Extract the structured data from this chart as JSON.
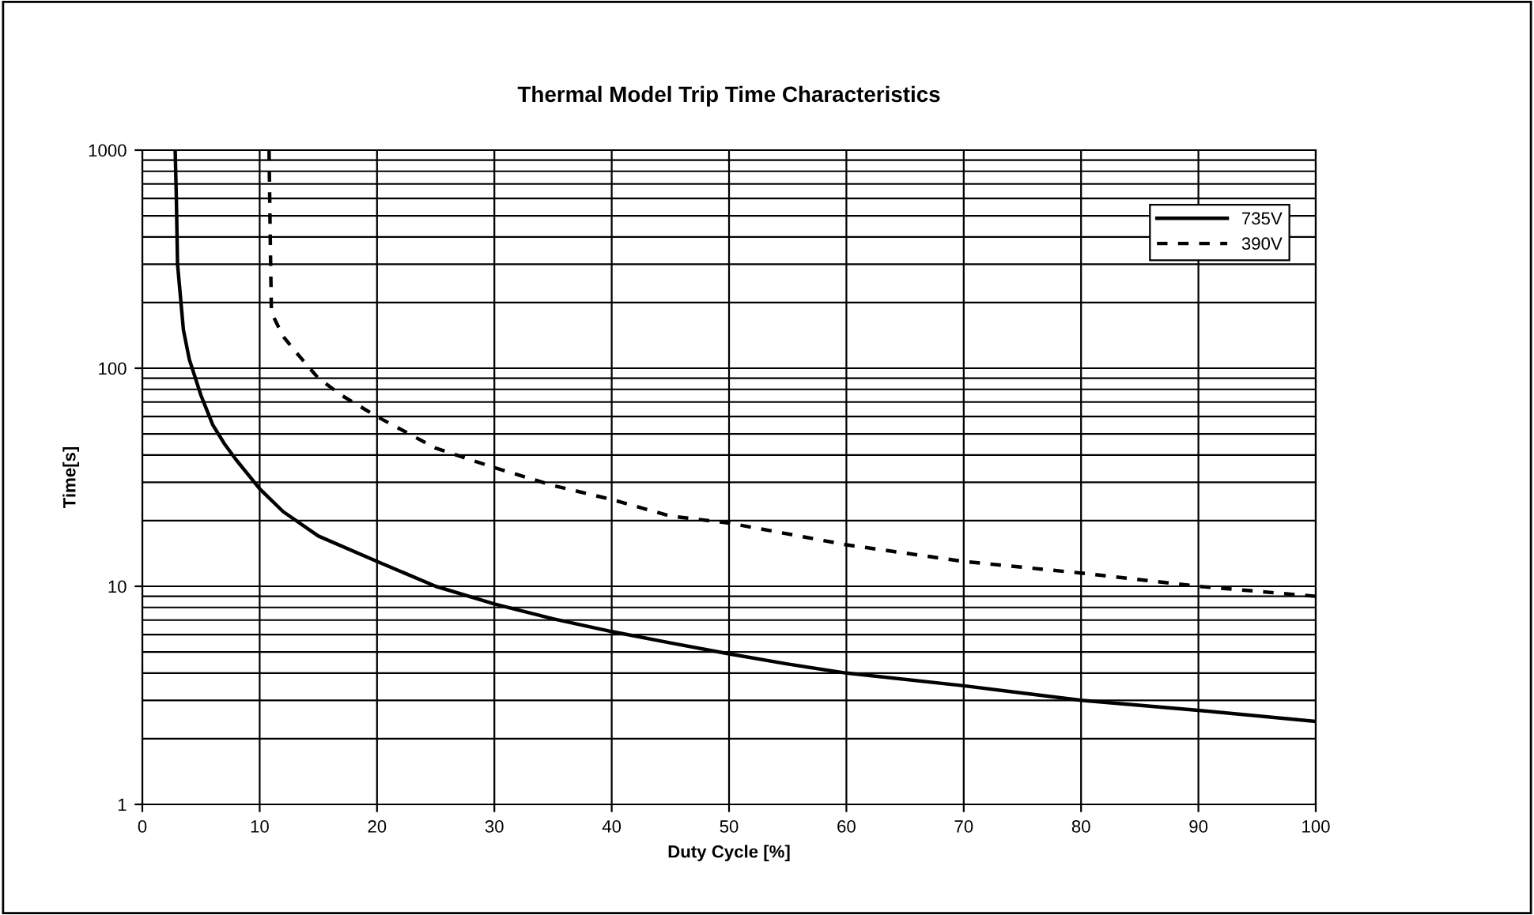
{
  "chart_data": {
    "type": "line",
    "title": "Thermal Model Trip Time Characteristics",
    "xlabel": "Duty Cycle [%]",
    "ylabel": "Time[s]",
    "log": "y",
    "xlim": [
      0,
      100
    ],
    "ylim": [
      1,
      1000
    ],
    "xticks": [
      0,
      10,
      20,
      30,
      40,
      50,
      60,
      70,
      80,
      90,
      100
    ],
    "yticks": [
      1,
      10,
      100,
      1000
    ],
    "grid": true,
    "legend": "top right",
    "marker": "none",
    "series": [
      {
        "name": "735V",
        "color": "#000000",
        "line_style": "solid",
        "x": [
          2.8,
          2.9,
          3,
          3.5,
          4,
          5,
          6,
          7,
          8,
          10,
          12,
          15,
          20,
          25,
          30,
          35,
          40,
          45,
          50,
          55,
          60,
          70,
          80,
          90,
          100
        ],
        "values": [
          1000,
          600,
          300,
          150,
          110,
          75,
          55,
          45,
          38,
          28,
          22,
          17,
          13,
          10,
          8.3,
          7.1,
          6.2,
          5.5,
          4.9,
          4.4,
          4.0,
          3.5,
          3.0,
          2.7,
          2.4
        ]
      },
      {
        "name": "390V",
        "color": "#000000",
        "line_style": "dashed",
        "x": [
          10.8,
          10.9,
          11,
          12,
          13,
          15,
          17,
          20,
          25,
          30,
          35,
          40,
          45,
          50,
          60,
          70,
          80,
          90,
          100
        ],
        "values": [
          1000,
          400,
          180,
          140,
          120,
          90,
          75,
          60,
          43,
          35,
          29,
          25,
          21,
          19.5,
          15.5,
          13,
          11.5,
          10,
          9
        ]
      }
    ]
  }
}
